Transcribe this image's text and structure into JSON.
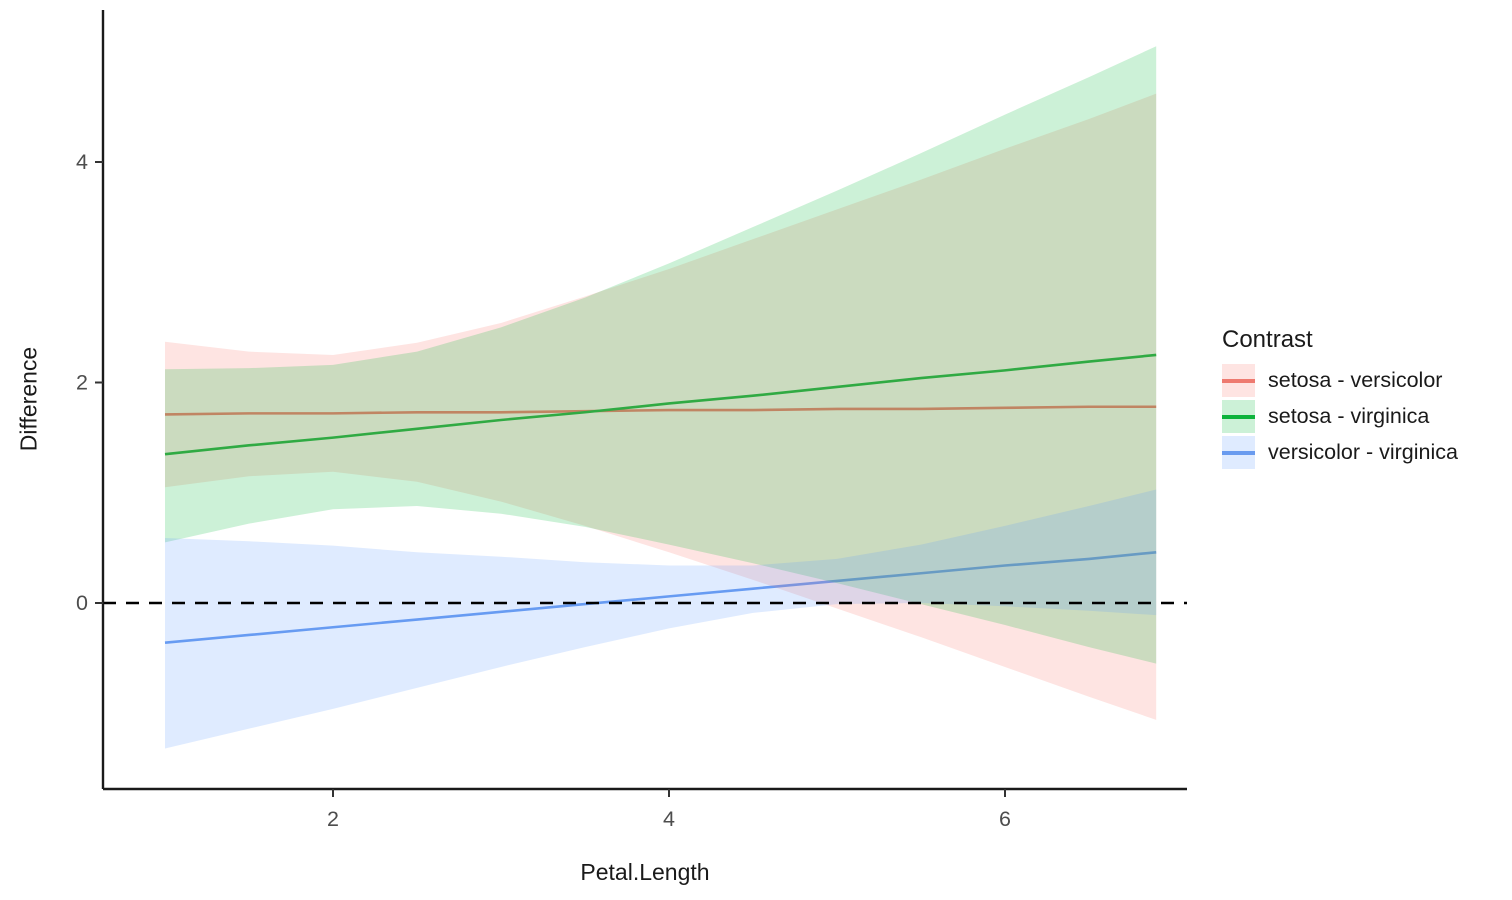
{
  "figure": {
    "xlabel": "Petal.Length",
    "ylabel": "Difference"
  },
  "chart_data": {
    "type": "line",
    "title": "",
    "xlabel": "Petal.Length",
    "ylabel": "Difference",
    "legend_title": "Contrast",
    "legend_position": "right",
    "grid": false,
    "x_ticks": [
      2,
      4,
      6
    ],
    "y_ticks": [
      0,
      2,
      4
    ],
    "xlim": [
      1,
      6.9
    ],
    "ylim": [
      -1.69,
      5.38
    ],
    "ref_line": {
      "y": 0,
      "style": "dashed",
      "color": "#000000"
    },
    "axis_color": "#1a1a1a",
    "tick_label_color": "#4d4d4d",
    "x": [
      1,
      1.5,
      2,
      2.5,
      3,
      3.5,
      4,
      4.5,
      5,
      5.5,
      6,
      6.5,
      6.9
    ],
    "series": [
      {
        "key": "setosa-versicolor",
        "name": "setosa - versicolor",
        "color": "#ee7a70",
        "fill": "rgba(248,118,109,0.2)",
        "y": [
          1.71,
          1.72,
          1.72,
          1.73,
          1.73,
          1.74,
          1.75,
          1.75,
          1.76,
          1.76,
          1.77,
          1.78,
          1.78
        ],
        "hi": [
          2.37,
          2.28,
          2.25,
          2.36,
          2.54,
          2.78,
          3.03,
          3.3,
          3.57,
          3.84,
          4.12,
          4.39,
          4.62
        ],
        "lo": [
          1.05,
          1.15,
          1.19,
          1.1,
          0.92,
          0.7,
          0.46,
          0.21,
          -0.05,
          -0.31,
          -0.58,
          -0.85,
          -1.06
        ]
      },
      {
        "key": "setosa-virginica",
        "name": "setosa - virginica",
        "color": "#0db33c",
        "fill": "rgba(0,186,56,0.2)",
        "y": [
          1.35,
          1.43,
          1.5,
          1.58,
          1.66,
          1.73,
          1.81,
          1.88,
          1.96,
          2.04,
          2.11,
          2.19,
          2.25
        ],
        "hi": [
          2.12,
          2.13,
          2.16,
          2.28,
          2.5,
          2.77,
          3.08,
          3.41,
          3.74,
          4.08,
          4.43,
          4.77,
          5.05
        ],
        "lo": [
          0.55,
          0.72,
          0.85,
          0.88,
          0.81,
          0.69,
          0.53,
          0.36,
          0.18,
          -0.01,
          -0.2,
          -0.4,
          -0.55
        ]
      },
      {
        "key": "versicolor-virginica",
        "name": "versicolor - virginica",
        "color": "#699bef",
        "fill": "rgba(97,156,255,0.2)",
        "y": [
          -0.36,
          -0.29,
          -0.22,
          -0.15,
          -0.08,
          -0.01,
          0.06,
          0.13,
          0.2,
          0.27,
          0.34,
          0.4,
          0.46
        ],
        "hi": [
          0.59,
          0.56,
          0.52,
          0.46,
          0.42,
          0.37,
          0.34,
          0.34,
          0.4,
          0.53,
          0.7,
          0.88,
          1.03
        ],
        "lo": [
          -1.32,
          -1.14,
          -0.96,
          -0.77,
          -0.58,
          -0.4,
          -0.23,
          -0.09,
          -0.01,
          0.0,
          -0.03,
          -0.07,
          -0.11
        ]
      }
    ]
  }
}
